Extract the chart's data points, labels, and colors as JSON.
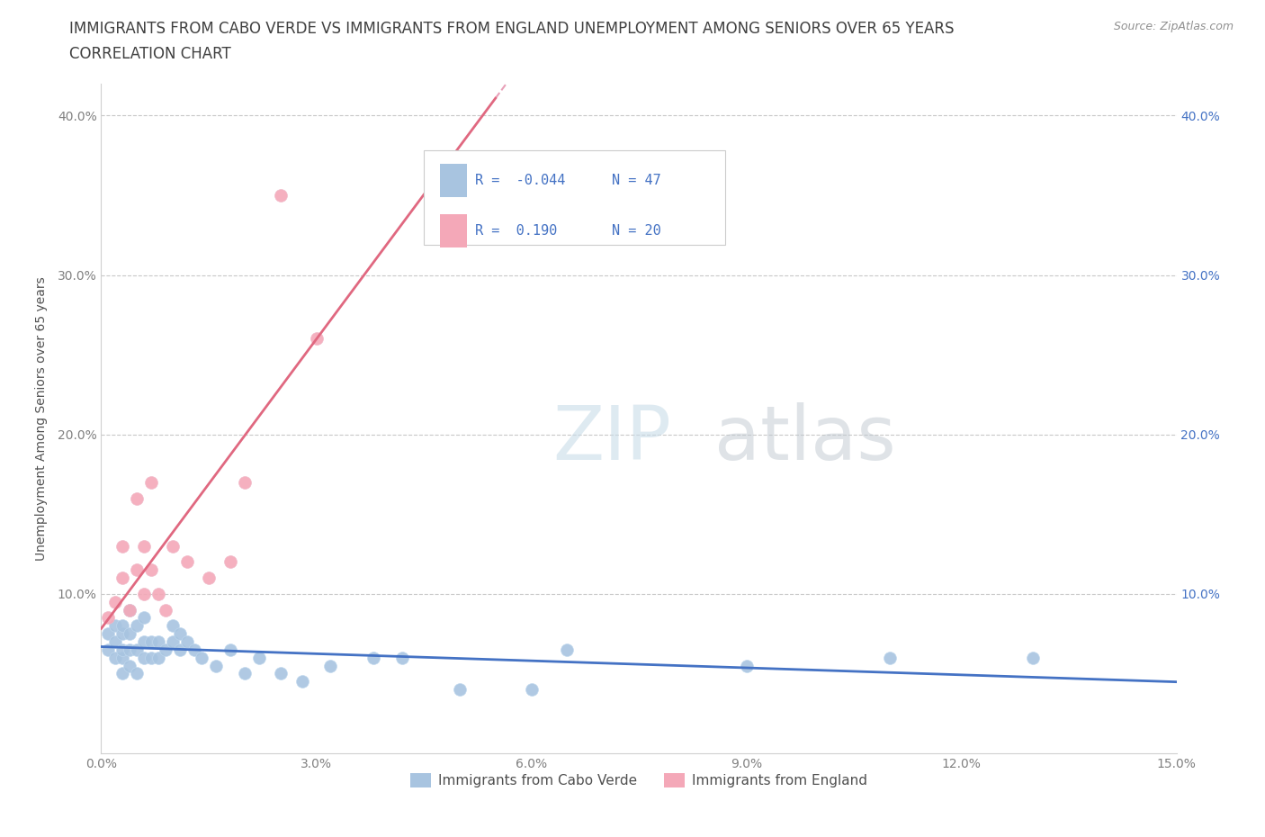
{
  "title_line1": "IMMIGRANTS FROM CABO VERDE VS IMMIGRANTS FROM ENGLAND UNEMPLOYMENT AMONG SENIORS OVER 65 YEARS",
  "title_line2": "CORRELATION CHART",
  "source": "Source: ZipAtlas.com",
  "ylabel": "Unemployment Among Seniors over 65 years",
  "xlim": [
    0.0,
    0.15
  ],
  "ylim": [
    0.0,
    0.42
  ],
  "xticks": [
    0.0,
    0.03,
    0.06,
    0.09,
    0.12,
    0.15
  ],
  "xtick_labels": [
    "0.0%",
    "3.0%",
    "6.0%",
    "9.0%",
    "12.0%",
    "15.0%"
  ],
  "yticks": [
    0.0,
    0.1,
    0.2,
    0.3,
    0.4
  ],
  "ytick_labels": [
    "",
    "10.0%",
    "20.0%",
    "30.0%",
    "40.0%"
  ],
  "right_ytick_labels": [
    "",
    "10.0%",
    "20.0%",
    "30.0%",
    "40.0%"
  ],
  "cabo_verde_R": -0.044,
  "cabo_verde_N": 47,
  "england_R": 0.19,
  "england_N": 20,
  "cabo_verde_color": "#a8c4e0",
  "england_color": "#f4a8b8",
  "cabo_verde_line_color": "#4472c4",
  "england_line_color": "#e06880",
  "england_dash_color": "#e8a0b8",
  "cabo_verde_x": [
    0.001,
    0.001,
    0.002,
    0.002,
    0.002,
    0.003,
    0.003,
    0.003,
    0.003,
    0.003,
    0.004,
    0.004,
    0.004,
    0.004,
    0.005,
    0.005,
    0.005,
    0.006,
    0.006,
    0.006,
    0.007,
    0.007,
    0.008,
    0.008,
    0.009,
    0.01,
    0.01,
    0.011,
    0.011,
    0.012,
    0.013,
    0.014,
    0.016,
    0.018,
    0.02,
    0.022,
    0.025,
    0.028,
    0.032,
    0.038,
    0.042,
    0.05,
    0.06,
    0.065,
    0.09,
    0.11,
    0.13
  ],
  "cabo_verde_y": [
    0.075,
    0.065,
    0.06,
    0.07,
    0.08,
    0.05,
    0.06,
    0.065,
    0.075,
    0.08,
    0.055,
    0.065,
    0.075,
    0.09,
    0.05,
    0.065,
    0.08,
    0.06,
    0.07,
    0.085,
    0.06,
    0.07,
    0.06,
    0.07,
    0.065,
    0.07,
    0.08,
    0.065,
    0.075,
    0.07,
    0.065,
    0.06,
    0.055,
    0.065,
    0.05,
    0.06,
    0.05,
    0.045,
    0.055,
    0.06,
    0.06,
    0.04,
    0.04,
    0.065,
    0.055,
    0.06,
    0.06
  ],
  "england_x": [
    0.001,
    0.002,
    0.003,
    0.003,
    0.004,
    0.005,
    0.005,
    0.006,
    0.006,
    0.007,
    0.007,
    0.008,
    0.009,
    0.01,
    0.012,
    0.015,
    0.018,
    0.02,
    0.025,
    0.03
  ],
  "england_y": [
    0.085,
    0.095,
    0.11,
    0.13,
    0.09,
    0.115,
    0.16,
    0.1,
    0.13,
    0.115,
    0.17,
    0.1,
    0.09,
    0.13,
    0.12,
    0.11,
    0.12,
    0.17,
    0.35,
    0.26
  ],
  "title_color": "#404040",
  "title_fontsize": 12,
  "axis_label_color": "#505050",
  "tick_color": "#808080",
  "grid_color": "#c8c8c8"
}
